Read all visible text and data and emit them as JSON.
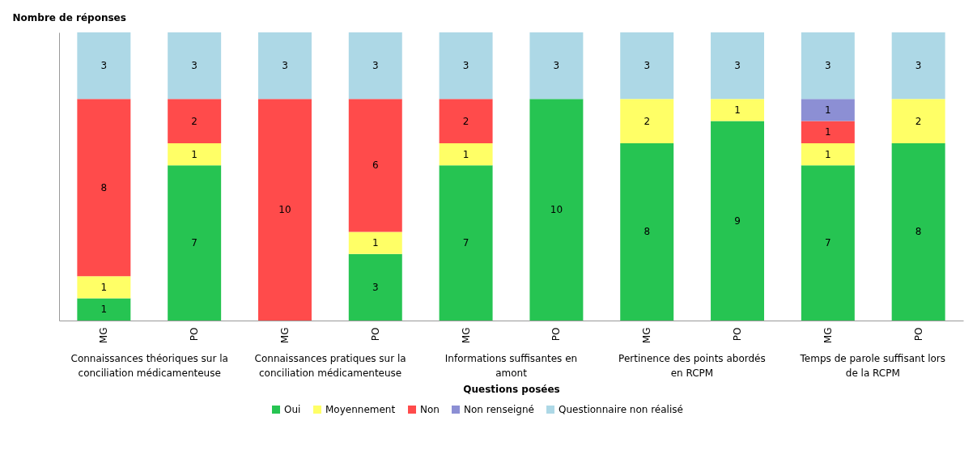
{
  "chart_data": {
    "type": "bar",
    "stacked": true,
    "ylabel": "Nombre de réponses",
    "xlabel": "Questions posées",
    "categories": [
      "MG",
      "PO",
      "MG",
      "PO",
      "MG",
      "PO",
      "MG",
      "PO",
      "MG",
      "PO"
    ],
    "annotations": [
      "Connaissances théoriques sur la conciliation médicamenteuse",
      "Connaissances pratiques sur la conciliation médicamenteuse",
      "Informations suffisantes en amont",
      "Pertinence des points abordés en RCPM",
      "Temps de parole suffisant lors de la RCPM"
    ],
    "series": [
      {
        "name": "Oui",
        "color": "#26c452",
        "values": [
          1,
          7,
          null,
          3,
          7,
          10,
          8,
          9,
          7,
          8
        ]
      },
      {
        "name": "Moyennement",
        "color": "#ffff66",
        "values": [
          1,
          1,
          null,
          1,
          1,
          null,
          2,
          1,
          1,
          2
        ]
      },
      {
        "name": "Non",
        "color": "#ff4b4b",
        "values": [
          8,
          2,
          10,
          6,
          2,
          null,
          null,
          null,
          1,
          null
        ]
      },
      {
        "name": "Non renseigné",
        "color": "#8c8fd4",
        "values": [
          null,
          null,
          null,
          null,
          null,
          null,
          null,
          null,
          1,
          null
        ]
      },
      {
        "name": "Questionnaire non réalisé",
        "color": "#add8e6",
        "values": [
          3,
          3,
          3,
          3,
          3,
          3,
          3,
          3,
          3,
          3
        ]
      }
    ],
    "ylim": [
      0,
      13
    ],
    "tick_labels": "x",
    "data_labels": true,
    "legend": "bottom"
  }
}
